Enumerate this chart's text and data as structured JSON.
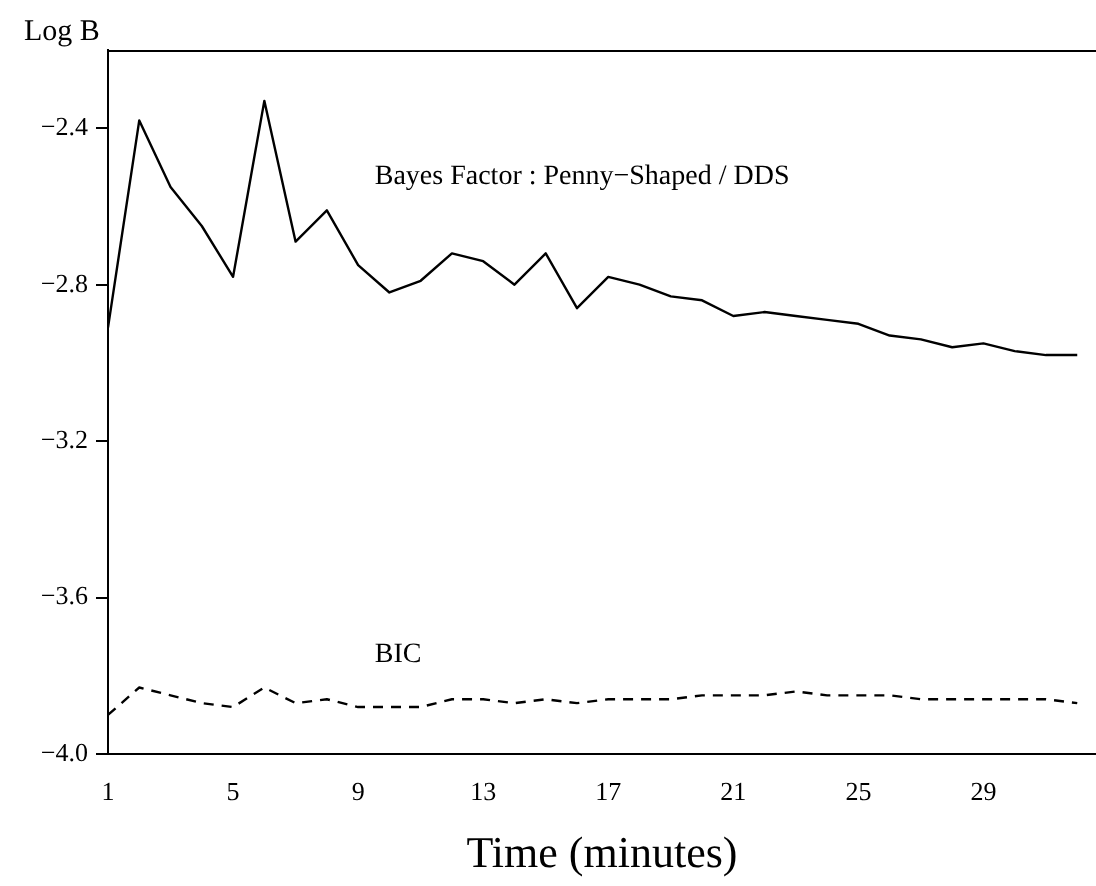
{
  "chart_data": {
    "type": "line",
    "xlabel": "Time (minutes)",
    "ylabel": "Log B",
    "x": [
      1,
      2,
      3,
      4,
      5,
      6,
      7,
      8,
      9,
      10,
      11,
      12,
      13,
      14,
      15,
      16,
      17,
      18,
      19,
      20,
      21,
      22,
      23,
      24,
      25,
      26,
      27,
      28,
      29,
      30,
      31,
      32
    ],
    "series": [
      {
        "name": "Bayes Factor : Penny−Shaped / DDS",
        "color": "#000000",
        "line_style": "solid",
        "values": [
          -2.91,
          -2.38,
          -2.55,
          -2.65,
          -2.78,
          -2.33,
          -2.69,
          -2.61,
          -2.75,
          -2.82,
          -2.79,
          -2.72,
          -2.74,
          -2.8,
          -2.72,
          -2.86,
          -2.78,
          -2.8,
          -2.83,
          -2.84,
          -2.88,
          -2.87,
          -2.88,
          -2.89,
          -2.9,
          -2.93,
          -2.94,
          -2.96,
          -2.95,
          -2.97,
          -2.98,
          -2.98
        ]
      },
      {
        "name": "BIC",
        "color": "#000000",
        "line_style": "dashed",
        "values": [
          -3.9,
          -3.83,
          -3.85,
          -3.87,
          -3.88,
          -3.83,
          -3.87,
          -3.86,
          -3.88,
          -3.88,
          -3.88,
          -3.86,
          -3.86,
          -3.87,
          -3.86,
          -3.87,
          -3.86,
          -3.86,
          -3.86,
          -3.85,
          -3.85,
          -3.85,
          -3.84,
          -3.85,
          -3.85,
          -3.85,
          -3.86,
          -3.86,
          -3.86,
          -3.86,
          -3.86,
          -3.87
        ]
      }
    ],
    "xlim": [
      1,
      32.6
    ],
    "xticks": [
      1,
      5,
      9,
      13,
      17,
      21,
      25,
      29
    ],
    "ylim": [
      -4.0,
      -2.2
    ],
    "yticks": [
      {
        "value": -4.0,
        "label": "−4.0"
      },
      {
        "value": -3.6,
        "label": "−3.6"
      },
      {
        "value": -3.2,
        "label": "−3.2"
      },
      {
        "value": -2.8,
        "label": "−2.8"
      },
      {
        "value": -2.4,
        "label": "−2.4"
      }
    ],
    "grid": false,
    "legend": false,
    "marker": "none"
  }
}
